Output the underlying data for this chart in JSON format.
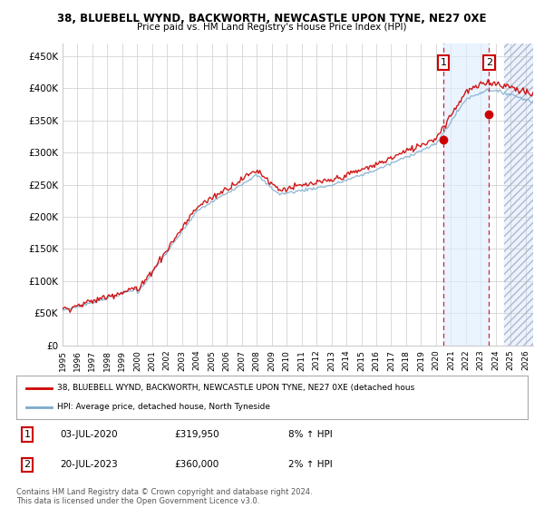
{
  "title_line1": "38, BLUEBELL WYND, BACKWORTH, NEWCASTLE UPON TYNE, NE27 0XE",
  "title_line2": "Price paid vs. HM Land Registry's House Price Index (HPI)",
  "ylabel_ticks": [
    "£0",
    "£50K",
    "£100K",
    "£150K",
    "£200K",
    "£250K",
    "£300K",
    "£350K",
    "£400K",
    "£450K"
  ],
  "ytick_values": [
    0,
    50000,
    100000,
    150000,
    200000,
    250000,
    300000,
    350000,
    400000,
    450000
  ],
  "ylim": [
    0,
    470000
  ],
  "xlim_start": 1995.0,
  "xlim_end": 2026.5,
  "year_ticks": [
    1995,
    1996,
    1997,
    1998,
    1999,
    2000,
    2001,
    2002,
    2003,
    2004,
    2005,
    2006,
    2007,
    2008,
    2009,
    2010,
    2011,
    2012,
    2013,
    2014,
    2015,
    2016,
    2017,
    2018,
    2019,
    2020,
    2021,
    2022,
    2023,
    2024,
    2025,
    2026
  ],
  "sale1_x": 2020.5,
  "sale1_y": 319950,
  "sale1_label": "1",
  "sale1_date": "03-JUL-2020",
  "sale1_price": "£319,950",
  "sale1_pct": "8% ↑ HPI",
  "sale2_x": 2023.55,
  "sale2_y": 360000,
  "sale2_label": "2",
  "sale2_date": "20-JUL-2023",
  "sale2_price": "£360,000",
  "sale2_pct": "2% ↑ HPI",
  "red_line_color": "#cc0000",
  "blue_line_color": "#7aaacc",
  "sale_dot_color": "#cc0000",
  "dashed_line_color": "#cc0000",
  "legend_line1": "38, BLUEBELL WYND, BACKWORTH, NEWCASTLE UPON TYNE, NE27 0XE (detached hous",
  "legend_line2": "HPI: Average price, detached house, North Tyneside",
  "footnote": "Contains HM Land Registry data © Crown copyright and database right 2024.\nThis data is licensed under the Open Government Licence v3.0.",
  "bg_color": "#ffffff",
  "grid_color": "#cccccc",
  "shaded_region_color": "#ddeeff",
  "future_start": 2024.58,
  "hatch_fill_color": "#eef2ff"
}
